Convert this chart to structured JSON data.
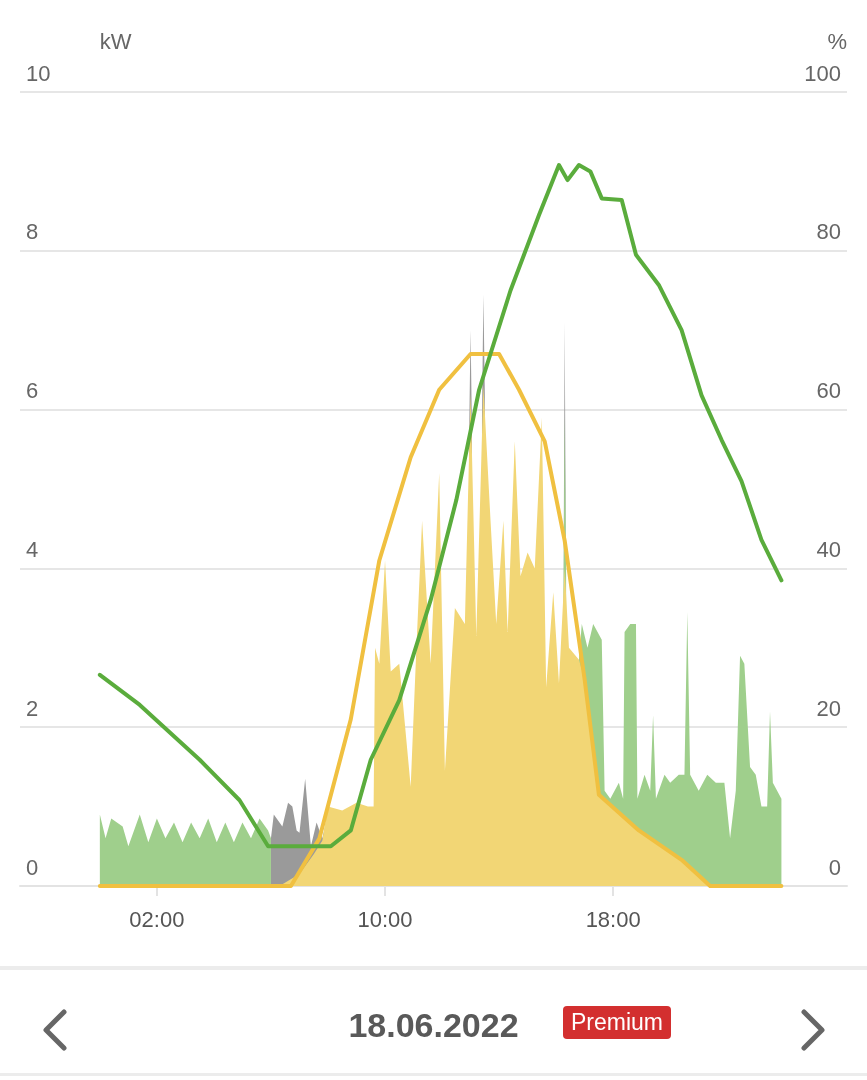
{
  "chart_data": {
    "type": "area",
    "ylabel": "kW",
    "y2label": "%",
    "xlim": [
      -2.8,
      26.2
    ],
    "xticks": [
      {
        "value": 2,
        "label": "02:00"
      },
      {
        "value": 10,
        "label": "10:00"
      },
      {
        "value": 18,
        "label": "18:00"
      }
    ],
    "ylim": [
      0,
      10
    ],
    "yticks": [
      0,
      2,
      4,
      6,
      8,
      10
    ],
    "y2lim": [
      0,
      100
    ],
    "y2ticks": [
      0,
      20,
      40,
      60,
      80,
      100
    ],
    "grid": "y",
    "annotations": [
      "18.06.2022",
      "Premium"
    ],
    "series": [
      {
        "color": "#9a9a9a",
        "x": [
          6.0,
          6.1,
          6.4,
          6.6,
          6.75,
          6.9,
          7.0,
          7.2,
          7.4,
          7.6,
          7.8,
          8.0,
          8.05,
          12.95,
          13.0,
          13.05,
          13.1,
          13.4,
          13.45,
          13.5,
          13.55,
          16.27,
          16.3,
          16.33
        ],
        "values": [
          0.6,
          0.9,
          0.75,
          1.05,
          1.0,
          0.7,
          0.67,
          1.35,
          0.5,
          0.8,
          0.6,
          0.9,
          null,
          5.7,
          7.0,
          5.7,
          null,
          5.9,
          7.45,
          6.2,
          null,
          4.6,
          7.1,
          5.0
        ]
      },
      {
        "color": "#9fcf8c",
        "x": [
          0,
          0.2,
          0.4,
          0.8,
          1.0,
          1.4,
          1.7,
          2.0,
          2.3,
          2.6,
          2.9,
          3.2,
          3.5,
          3.8,
          4.1,
          4.4,
          4.7,
          5.0,
          5.3,
          5.6,
          5.9,
          6.0,
          6.05,
          16.25,
          16.3,
          16.35,
          16.5,
          16.8,
          16.9,
          17.1,
          17.3,
          17.6,
          17.7,
          17.9,
          18.2,
          18.35,
          18.4,
          18.6,
          18.8,
          18.85,
          19.1,
          19.3,
          19.4,
          19.5,
          19.8,
          20.0,
          20.3,
          20.5,
          20.6,
          20.7,
          21.0,
          21.3,
          21.6,
          21.9,
          22.1,
          22.3,
          22.45,
          22.6,
          22.8,
          23.0,
          23.2,
          23.4,
          23.5,
          23.6,
          23.9
        ],
        "values": [
          0.9,
          0.6,
          0.85,
          0.75,
          0.5,
          0.9,
          0.55,
          0.85,
          0.6,
          0.8,
          0.55,
          0.8,
          0.6,
          0.85,
          0.55,
          0.8,
          0.55,
          0.8,
          0.6,
          0.85,
          0.7,
          0.6,
          null,
          3.3,
          5.9,
          3.9,
          null,
          2.85,
          3.3,
          3.0,
          3.3,
          3.1,
          1.2,
          1.1,
          1.3,
          1.1,
          3.2,
          3.3,
          3.3,
          1.1,
          1.4,
          1.2,
          2.15,
          1.1,
          1.4,
          1.3,
          1.4,
          1.4,
          3.45,
          1.4,
          1.2,
          1.4,
          1.3,
          1.3,
          0.6,
          1.2,
          2.9,
          2.8,
          1.5,
          1.4,
          1.0,
          1.0,
          2.2,
          1.3,
          1.1
        ]
      },
      {
        "color": "#f2d675",
        "x": [
          6.3,
          7.0,
          7.5,
          7.8,
          8.0,
          8.5,
          9.0,
          9.4,
          9.6,
          9.65,
          9.8,
          10.0,
          10.2,
          10.5,
          10.9,
          11.1,
          11.3,
          11.6,
          11.9,
          12.1,
          12.45,
          12.8,
          13.0,
          13.2,
          13.45,
          13.7,
          13.9,
          14.15,
          14.3,
          14.55,
          14.75,
          15.0,
          15.25,
          15.5,
          15.65,
          15.9,
          16.1,
          16.3,
          16.45,
          16.8,
          17.0,
          17.5,
          18.9,
          20.4,
          21.4,
          23.9
        ],
        "values": [
          0,
          0.15,
          0.4,
          0.57,
          1.0,
          0.95,
          1.05,
          1.0,
          1.0,
          3.0,
          2.8,
          4.1,
          2.7,
          2.8,
          1.25,
          3.0,
          4.6,
          2.8,
          5.2,
          1.45,
          3.5,
          3.3,
          6.2,
          3.15,
          6.3,
          4.6,
          3.3,
          4.6,
          3.2,
          5.6,
          3.9,
          4.2,
          4.0,
          5.9,
          2.5,
          3.7,
          2.55,
          4.0,
          3.0,
          2.85,
          2.6,
          1.15,
          0.7,
          0.33,
          0,
          0
        ]
      },
      {
        "type": "line",
        "color": "#f0c040",
        "x": [
          0,
          6.7,
          7.7,
          8.8,
          9.8,
          10.9,
          11.9,
          13.0,
          14.0,
          14.7,
          15.6,
          16.3,
          17.0,
          17.5,
          18.9,
          20.4,
          21.4,
          23.9
        ],
        "values": [
          0,
          0,
          0.6,
          2.1,
          4.1,
          5.4,
          6.25,
          6.7,
          6.7,
          6.25,
          5.6,
          4.35,
          2.6,
          1.15,
          0.7,
          0.33,
          0,
          0
        ]
      },
      {
        "type": "line",
        "axis": "y2",
        "color": "#5aac3c",
        "x": [
          0,
          1.4,
          3.5,
          4.9,
          5.9,
          8.1,
          8.8,
          9.5,
          10.5,
          11.6,
          12.5,
          13.3,
          14.4,
          15.4,
          16.1,
          16.4,
          16.8,
          17.2,
          17.6,
          18.3,
          18.8,
          19.6,
          20.4,
          21.1,
          21.8,
          22.5,
          23.2,
          23.9
        ],
        "values": [
          26.6,
          22.8,
          15.9,
          10.8,
          5.0,
          5.0,
          7,
          15.9,
          23.4,
          36,
          48.6,
          62.5,
          75,
          84.5,
          90.8,
          88.9,
          90.8,
          90,
          86.6,
          86.4,
          79.5,
          75.7,
          70,
          61.8,
          56.2,
          51,
          43.6,
          38.5
        ]
      }
    ]
  }
}
